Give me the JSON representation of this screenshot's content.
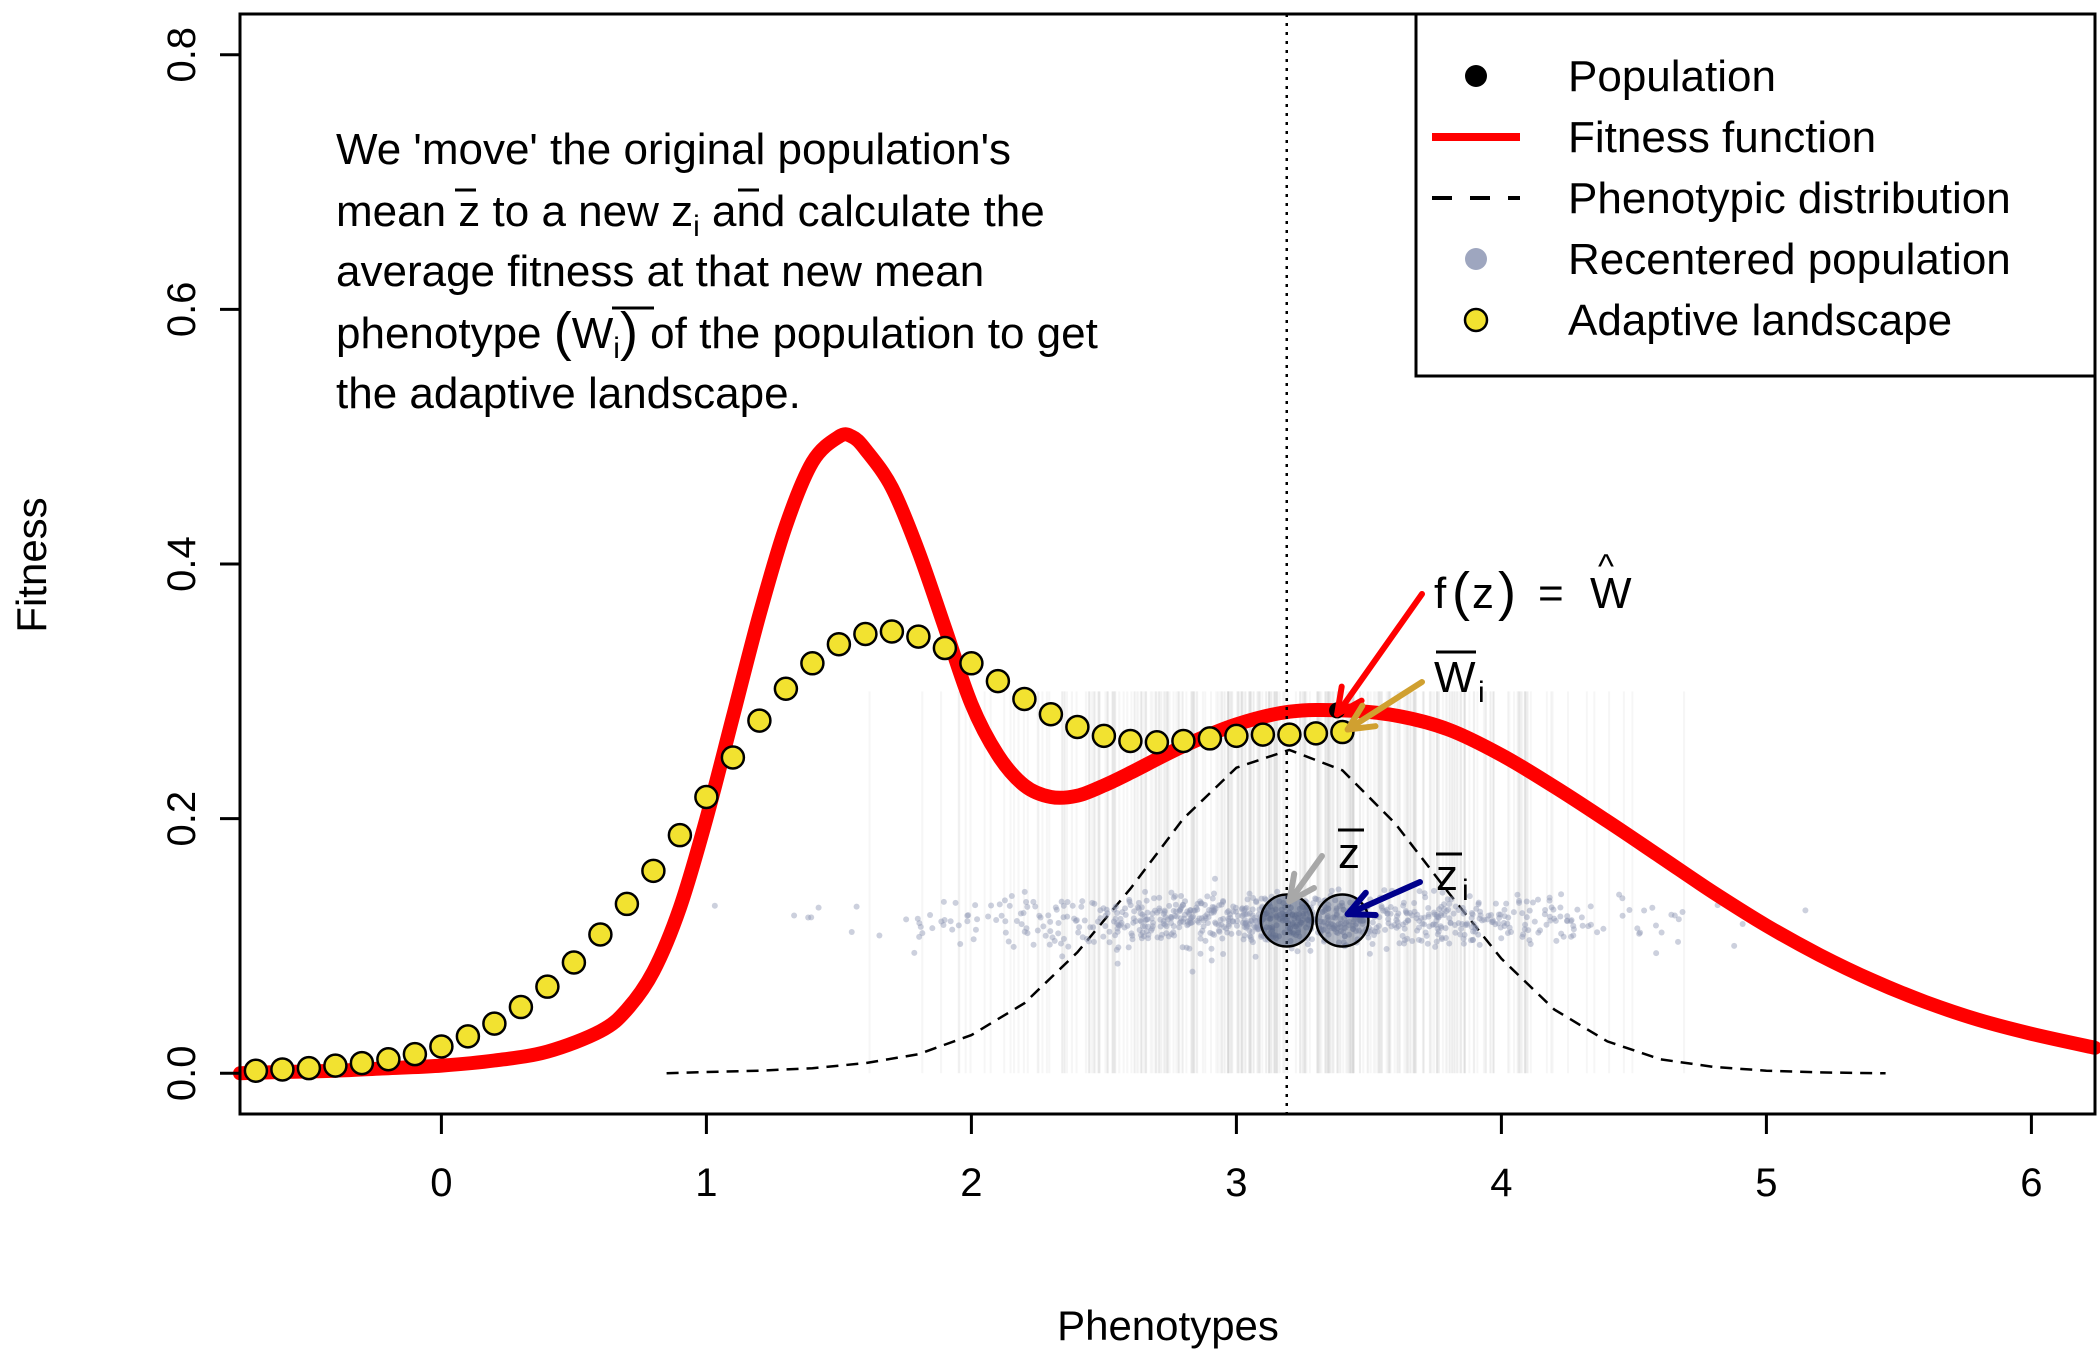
{
  "chart_data": {
    "type": "line",
    "title": "",
    "xlabel": "Phenotypes",
    "ylabel": "Fitness",
    "xlim": [
      -0.76,
      6.24
    ],
    "ylim": [
      -0.032,
      0.832
    ],
    "x_ticks": [
      "0",
      "1",
      "2",
      "3",
      "4",
      "5",
      "6"
    ],
    "x_tick_values": [
      0,
      1,
      2,
      3,
      4,
      5,
      6
    ],
    "y_ticks": [
      "0.0",
      "0.2",
      "0.4",
      "0.6",
      "0.8"
    ],
    "y_tick_values": [
      0,
      0.2,
      0.4,
      0.6,
      0.8
    ],
    "grid": false,
    "legend_position": "top-right",
    "legend": [
      {
        "label": "Population",
        "marker": "dot",
        "color": "#000000"
      },
      {
        "label": "Fitness function",
        "marker": "line",
        "color": "#ff0000"
      },
      {
        "label": "Phenotypic distribution",
        "marker": "dashed",
        "color": "#000000"
      },
      {
        "label": "Recentered population",
        "marker": "dot",
        "color": "#8d96b4"
      },
      {
        "label": "Adaptive landscape",
        "marker": "circle",
        "color": "#f2e230"
      }
    ],
    "annotation_lines": [
      "We 'move' the original population's",
      "mean z̅ to a new z̅i and calculate the",
      "average fitness at that new mean",
      "phenotype (W̅i) of the population to get",
      "the adaptive landscape."
    ],
    "labels": {
      "f_z": "f(z) = Ŵ",
      "W_i": "W̅i",
      "z_bar": "z̅",
      "z_i": "z̅i"
    },
    "mean_phenotype": 3.19,
    "recentered_mean": 3.4,
    "fitness_at_mean": 0.285,
    "mean_fitness_at_recentered": 0.268,
    "population_y": 0.12,
    "series": [
      {
        "name": "Fitness function",
        "color": "#ff0000",
        "x": [
          -0.76,
          -0.6,
          -0.4,
          -0.2,
          0,
          0.2,
          0.4,
          0.6,
          0.7,
          0.8,
          0.9,
          1.0,
          1.1,
          1.2,
          1.3,
          1.4,
          1.5,
          1.55,
          1.6,
          1.7,
          1.8,
          1.9,
          2.0,
          2.1,
          2.2,
          2.3,
          2.4,
          2.5,
          2.6,
          2.8,
          3.0,
          3.2,
          3.4,
          3.6,
          3.8,
          4.0,
          4.2,
          4.4,
          4.6,
          4.8,
          5.0,
          5.2,
          5.4,
          5.6,
          5.8,
          6.0,
          6.24
        ],
        "y": [
          0.0,
          0.001,
          0.002,
          0.004,
          0.006,
          0.01,
          0.017,
          0.033,
          0.05,
          0.08,
          0.13,
          0.2,
          0.28,
          0.36,
          0.43,
          0.48,
          0.5,
          0.5,
          0.49,
          0.46,
          0.41,
          0.35,
          0.29,
          0.25,
          0.226,
          0.217,
          0.218,
          0.226,
          0.236,
          0.257,
          0.274,
          0.284,
          0.285,
          0.281,
          0.27,
          0.25,
          0.225,
          0.198,
          0.17,
          0.142,
          0.116,
          0.093,
          0.073,
          0.056,
          0.042,
          0.031,
          0.02
        ]
      },
      {
        "name": "Phenotypic distribution",
        "color": "#000000",
        "x": [
          0.85,
          1.0,
          1.2,
          1.4,
          1.6,
          1.8,
          2.0,
          2.2,
          2.4,
          2.6,
          2.8,
          3.0,
          3.2,
          3.4,
          3.6,
          3.8,
          4.0,
          4.2,
          4.4,
          4.6,
          4.8,
          5.0,
          5.2,
          5.45
        ],
        "y": [
          0.0,
          0.001,
          0.002,
          0.004,
          0.008,
          0.015,
          0.03,
          0.055,
          0.095,
          0.145,
          0.2,
          0.24,
          0.254,
          0.238,
          0.196,
          0.142,
          0.09,
          0.05,
          0.025,
          0.011,
          0.005,
          0.002,
          0.0007,
          0.0
        ]
      },
      {
        "name": "Adaptive landscape",
        "color": "#f2e230",
        "x": [
          -0.7,
          -0.6,
          -0.5,
          -0.4,
          -0.3,
          -0.2,
          -0.1,
          0.0,
          0.1,
          0.2,
          0.3,
          0.4,
          0.5,
          0.6,
          0.7,
          0.8,
          0.9,
          1.0,
          1.1,
          1.2,
          1.3,
          1.4,
          1.5,
          1.6,
          1.7,
          1.8,
          1.9,
          2.0,
          2.1,
          2.2,
          2.3,
          2.4,
          2.5,
          2.6,
          2.7,
          2.8,
          2.9,
          3.0,
          3.1,
          3.2,
          3.3,
          3.4
        ],
        "y": [
          0.002,
          0.003,
          0.004,
          0.006,
          0.008,
          0.011,
          0.015,
          0.021,
          0.029,
          0.039,
          0.052,
          0.068,
          0.087,
          0.109,
          0.133,
          0.159,
          0.187,
          0.217,
          0.248,
          0.277,
          0.302,
          0.322,
          0.337,
          0.345,
          0.347,
          0.343,
          0.334,
          0.322,
          0.308,
          0.294,
          0.282,
          0.272,
          0.265,
          0.261,
          0.26,
          0.261,
          0.263,
          0.265,
          0.266,
          0.266,
          0.267,
          0.268
        ]
      }
    ]
  }
}
